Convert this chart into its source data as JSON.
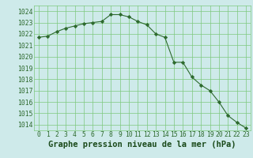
{
  "x": [
    0,
    1,
    2,
    3,
    4,
    5,
    6,
    7,
    8,
    9,
    10,
    11,
    12,
    13,
    14,
    15,
    16,
    17,
    18,
    19,
    20,
    21,
    22,
    23
  ],
  "y": [
    1021.7,
    1021.8,
    1022.2,
    1022.5,
    1022.7,
    1022.9,
    1023.0,
    1023.1,
    1023.7,
    1023.7,
    1023.5,
    1023.1,
    1022.8,
    1022.0,
    1021.7,
    1019.5,
    1019.5,
    1018.2,
    1017.5,
    1017.0,
    1016.0,
    1014.8,
    1014.2,
    1013.7
  ],
  "line_color": "#2d6a2d",
  "marker": "D",
  "marker_size": 2.2,
  "bg_color": "#ceeaea",
  "grid_color": "#7dc87d",
  "xlabel": "Graphe pression niveau de la mer (hPa)",
  "xlabel_color": "#1a4a1a",
  "ylim": [
    1013.5,
    1024.5
  ],
  "yticks": [
    1014,
    1015,
    1016,
    1017,
    1018,
    1019,
    1020,
    1021,
    1022,
    1023,
    1024
  ],
  "xticks": [
    0,
    1,
    2,
    3,
    4,
    5,
    6,
    7,
    8,
    9,
    10,
    11,
    12,
    13,
    14,
    15,
    16,
    17,
    18,
    19,
    20,
    21,
    22,
    23
  ],
  "tick_color": "#2d6a2d",
  "tick_fontsize": 5.8,
  "xlabel_fontsize": 7.5,
  "linewidth": 0.8
}
